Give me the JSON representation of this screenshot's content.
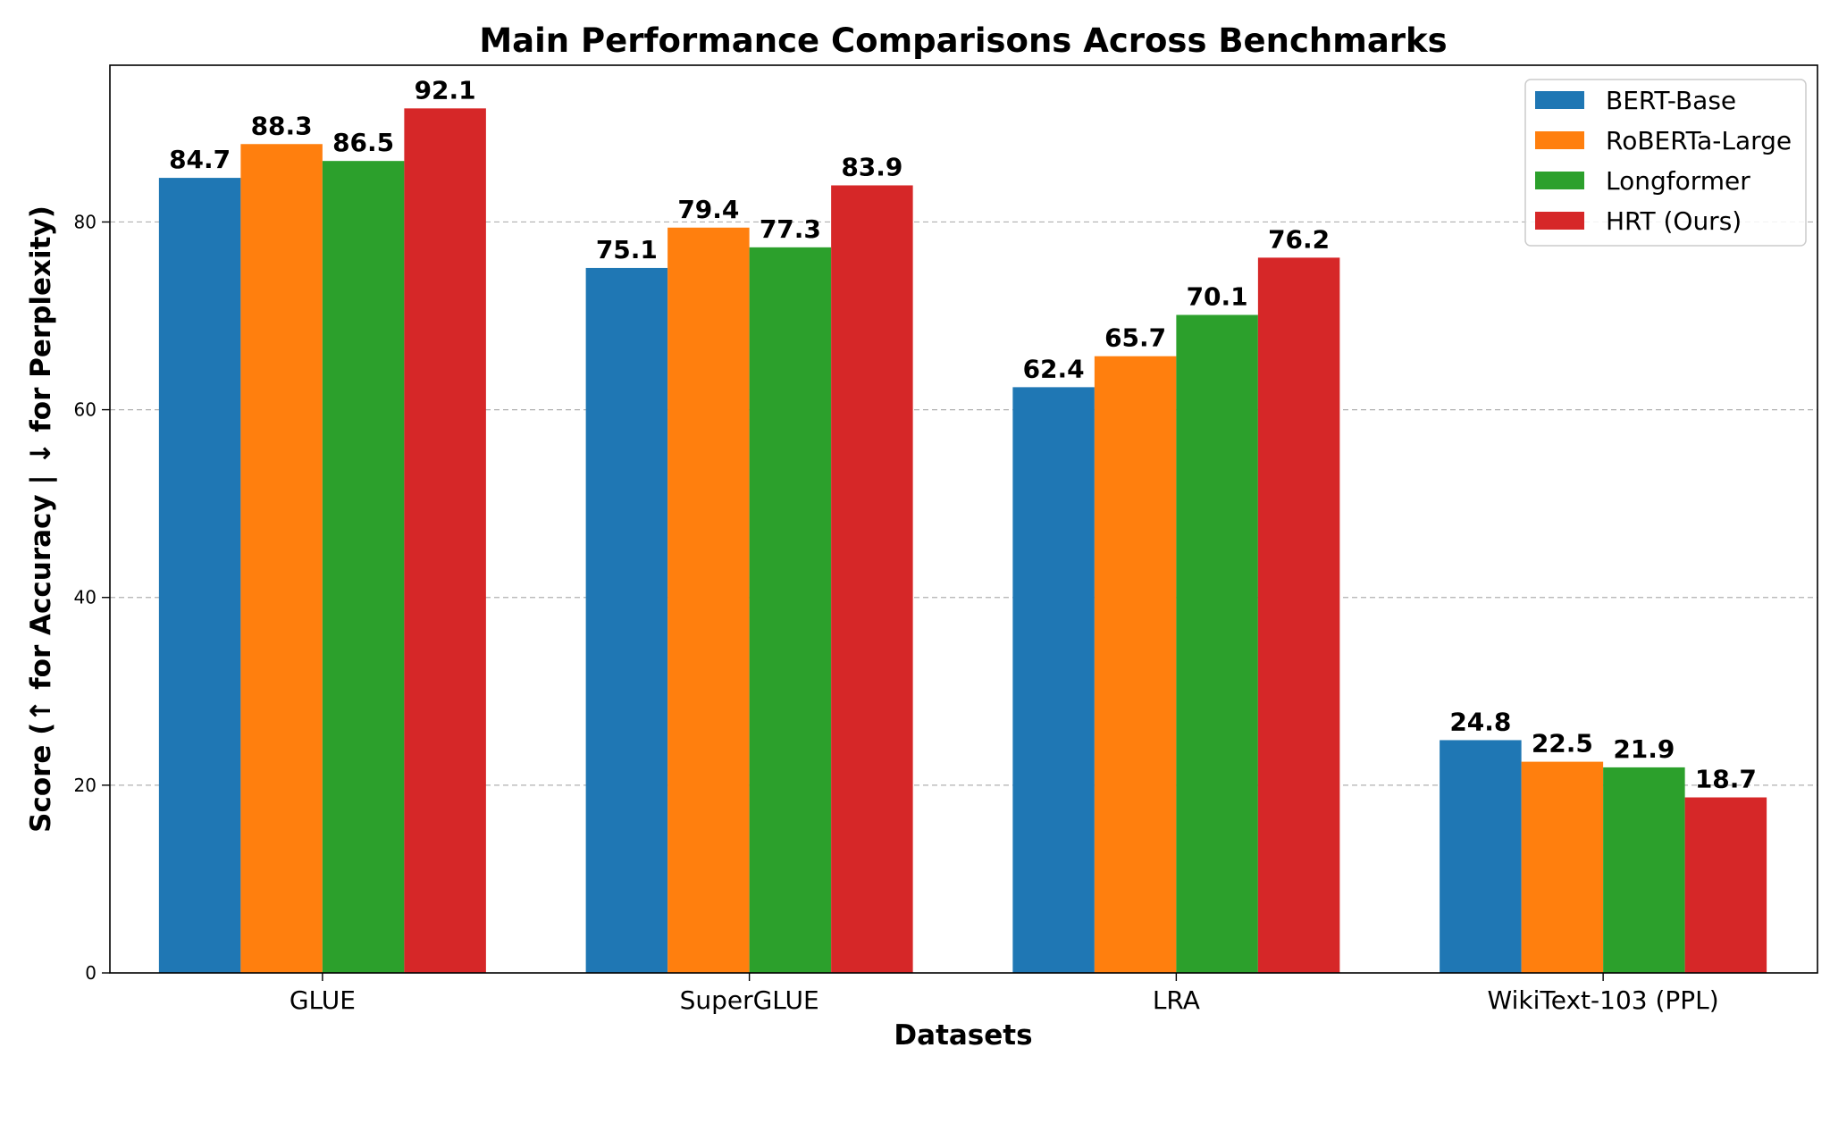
{
  "chart_data": {
    "type": "bar",
    "title": "Main Performance Comparisons Across Benchmarks",
    "xlabel": "Datasets",
    "ylabel": "Score (↑ for Accuracy | ↓ for Perplexity)",
    "categories": [
      "GLUE",
      "SuperGLUE",
      "LRA",
      "WikiText-103 (PPL)"
    ],
    "series": [
      {
        "name": "BERT-Base",
        "color": "#1f77b4",
        "values": [
          84.7,
          75.1,
          62.4,
          24.8
        ]
      },
      {
        "name": "RoBERTa-Large",
        "color": "#ff7f0e",
        "values": [
          88.3,
          79.4,
          65.7,
          22.5
        ]
      },
      {
        "name": "Longformer",
        "color": "#2ca02c",
        "values": [
          86.5,
          77.3,
          70.1,
          21.9
        ]
      },
      {
        "name": "HRT (Ours)",
        "color": "#d62728",
        "values": [
          92.1,
          83.9,
          76.2,
          18.7
        ]
      }
    ],
    "ylim": [
      0,
      96.7
    ],
    "yticks": [
      0,
      20,
      40,
      60,
      80
    ],
    "grid": "y-dashed",
    "legend_position": "top-right"
  }
}
